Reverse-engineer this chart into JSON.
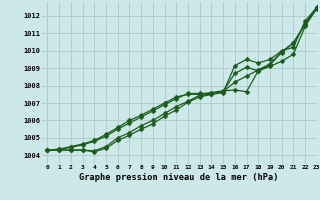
{
  "xlabel": "Graphe pression niveau de la mer (hPa)",
  "bg_color": "#cce8e8",
  "grid_color": "#adc8c8",
  "line_color": "#1a5c1a",
  "xlim": [
    -0.5,
    23
  ],
  "ylim": [
    1003.5,
    1012.8
  ],
  "yticks": [
    1004,
    1005,
    1006,
    1007,
    1008,
    1009,
    1010,
    1011,
    1012
  ],
  "xticks": [
    0,
    1,
    2,
    3,
    4,
    5,
    6,
    7,
    8,
    9,
    10,
    11,
    12,
    13,
    14,
    15,
    16,
    17,
    18,
    19,
    20,
    21,
    22,
    23
  ],
  "series": [
    [
      1004.3,
      1004.3,
      1004.3,
      1004.3,
      1004.25,
      1004.5,
      1005.0,
      1005.3,
      1005.7,
      1006.0,
      1006.4,
      1006.8,
      1007.1,
      1007.45,
      1007.5,
      1007.6,
      1009.15,
      1009.5,
      1009.3,
      1009.5,
      1010.0,
      1010.2,
      1011.7,
      1012.5
    ],
    [
      1004.3,
      1004.3,
      1004.3,
      1004.3,
      1004.2,
      1004.4,
      1004.85,
      1005.15,
      1005.5,
      1005.8,
      1006.25,
      1006.6,
      1007.05,
      1007.35,
      1007.5,
      1007.65,
      1008.7,
      1009.05,
      1008.85,
      1009.1,
      1009.4,
      1009.8,
      1011.4,
      1012.45
    ],
    [
      1004.3,
      1004.35,
      1004.45,
      1004.6,
      1004.8,
      1005.1,
      1005.5,
      1005.85,
      1006.2,
      1006.55,
      1006.9,
      1007.25,
      1007.55,
      1007.55,
      1007.55,
      1007.65,
      1008.2,
      1008.55,
      1008.9,
      1009.25,
      1009.95,
      1010.45,
      1011.55,
      1012.45
    ],
    [
      1004.3,
      1004.35,
      1004.5,
      1004.65,
      1004.85,
      1005.2,
      1005.6,
      1006.0,
      1006.3,
      1006.65,
      1007.0,
      1007.35,
      1007.5,
      1007.5,
      1007.6,
      1007.7,
      1007.75,
      1007.65,
      1008.85,
      1009.2,
      1009.9,
      1010.45,
      1011.5,
      1012.4
    ]
  ],
  "markersizes": [
    2.5,
    2.5,
    2.5,
    2.5
  ],
  "linewidths": [
    0.9,
    0.9,
    0.9,
    0.9
  ]
}
